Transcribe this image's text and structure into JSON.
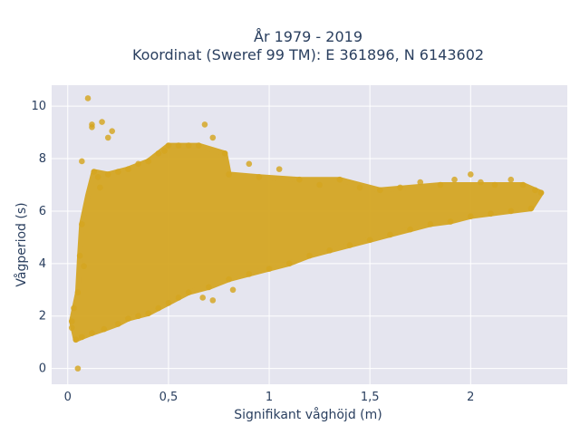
{
  "chart_data": {
    "type": "scatter",
    "title_lines": [
      "År 1979 - 2019",
      "Koordinat (Sweref 99 TM): E 361896, N 6143602"
    ],
    "xlabel": "Signifikant våghöjd (m)",
    "ylabel": "Vågperiod (s)",
    "xlim": [
      -0.08,
      2.48
    ],
    "ylim": [
      -0.6,
      10.8
    ],
    "x_ticks": [
      0,
      0.5,
      1,
      1.5,
      2
    ],
    "x_tick_labels": [
      "0",
      "0,5",
      "1",
      "1,5",
      "2"
    ],
    "y_ticks": [
      0,
      2,
      4,
      6,
      8,
      10
    ],
    "y_tick_labels": [
      "0",
      "2",
      "4",
      "6",
      "8",
      "10"
    ],
    "grid": true,
    "marker_color": "#d4a520",
    "plot_background": "#e5e5ef",
    "series": [
      {
        "points": [
          [
            0.05,
            0.0
          ],
          [
            0.02,
            1.55
          ],
          [
            0.04,
            1.1
          ],
          [
            0.1,
            10.3
          ],
          [
            0.12,
            9.3
          ],
          [
            0.17,
            9.4
          ],
          [
            0.12,
            9.2
          ],
          [
            0.22,
            9.05
          ],
          [
            0.2,
            8.8
          ],
          [
            0.07,
            7.9
          ],
          [
            0.13,
            7.5
          ],
          [
            0.16,
            6.9
          ],
          [
            0.07,
            5.5
          ],
          [
            0.06,
            4.3
          ],
          [
            0.08,
            3.9
          ],
          [
            0.05,
            2.9
          ],
          [
            0.03,
            2.3
          ],
          [
            0.02,
            1.8
          ],
          [
            0.07,
            1.2
          ],
          [
            0.12,
            1.35
          ],
          [
            0.18,
            1.5
          ],
          [
            0.25,
            1.7
          ],
          [
            0.3,
            1.9
          ],
          [
            0.35,
            2.0
          ],
          [
            0.4,
            2.1
          ],
          [
            0.45,
            2.3
          ],
          [
            0.5,
            2.5
          ],
          [
            0.55,
            2.7
          ],
          [
            0.6,
            2.9
          ],
          [
            0.7,
            3.1
          ],
          [
            0.8,
            3.4
          ],
          [
            0.9,
            3.6
          ],
          [
            1.0,
            3.8
          ],
          [
            1.1,
            4.0
          ],
          [
            1.2,
            4.3
          ],
          [
            1.3,
            4.5
          ],
          [
            1.4,
            4.7
          ],
          [
            1.5,
            4.9
          ],
          [
            1.6,
            5.1
          ],
          [
            1.7,
            5.3
          ],
          [
            1.8,
            5.5
          ],
          [
            1.9,
            5.6
          ],
          [
            2.0,
            5.8
          ],
          [
            2.1,
            5.9
          ],
          [
            2.2,
            6.0
          ],
          [
            2.3,
            6.1
          ],
          [
            2.35,
            6.7
          ],
          [
            2.32,
            6.8
          ],
          [
            2.26,
            7.0
          ],
          [
            2.2,
            7.2
          ],
          [
            2.12,
            7.0
          ],
          [
            2.05,
            7.1
          ],
          [
            2.0,
            7.4
          ],
          [
            1.92,
            7.2
          ],
          [
            1.85,
            7.0
          ],
          [
            1.75,
            7.1
          ],
          [
            1.65,
            6.9
          ],
          [
            1.55,
            6.8
          ],
          [
            1.45,
            6.9
          ],
          [
            1.35,
            7.2
          ],
          [
            1.25,
            7.0
          ],
          [
            1.15,
            7.2
          ],
          [
            1.05,
            7.6
          ],
          [
            0.95,
            7.3
          ],
          [
            0.9,
            7.8
          ],
          [
            0.8,
            7.4
          ],
          [
            0.78,
            8.2
          ],
          [
            0.72,
            8.8
          ],
          [
            0.68,
            9.3
          ],
          [
            0.65,
            8.5
          ],
          [
            0.6,
            8.5
          ],
          [
            0.55,
            8.5
          ],
          [
            0.5,
            8.5
          ],
          [
            0.48,
            8.3
          ],
          [
            0.45,
            8.2
          ],
          [
            0.4,
            7.9
          ],
          [
            0.35,
            7.8
          ],
          [
            0.3,
            7.6
          ],
          [
            0.25,
            7.5
          ],
          [
            0.2,
            7.4
          ],
          [
            0.15,
            7.3
          ],
          [
            0.67,
            2.7
          ],
          [
            0.82,
            3.0
          ],
          [
            0.72,
            2.6
          ]
        ]
      }
    ]
  }
}
